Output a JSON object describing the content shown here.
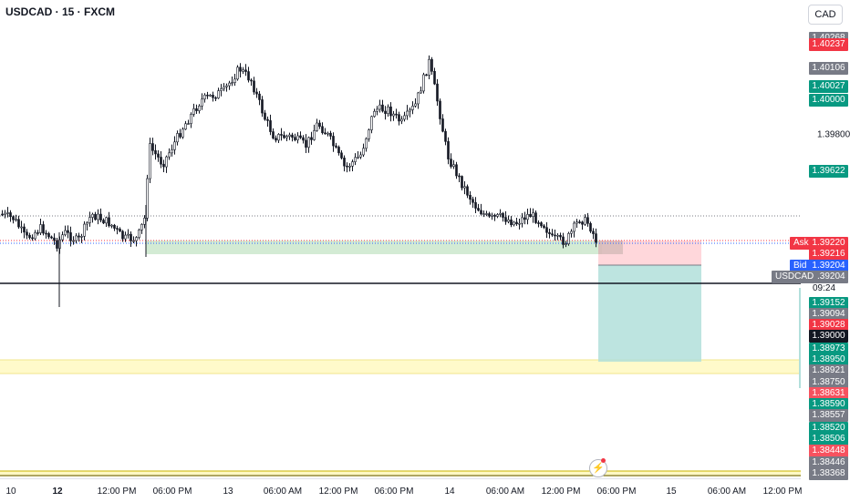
{
  "header": {
    "symbol": "USDCAD · 15 · FXCM"
  },
  "currency": "CAD",
  "price_axis": {
    "ticks": [
      "1.39800"
    ],
    "labels": [
      {
        "text": "1.40268",
        "price": 1.40268,
        "color": "#787b86"
      },
      {
        "text": "1.40237",
        "price": 1.40237,
        "color": "#f23645"
      },
      {
        "text": "1.40106",
        "price": 1.40122,
        "color": "#787b86"
      },
      {
        "text": "1.40027",
        "price": 1.40036,
        "color": "#089981"
      },
      {
        "text": "1.40000",
        "price": 1.39966,
        "color": "#089981"
      },
      {
        "text": "1.39622",
        "price": 1.39622,
        "color": "#089981"
      },
      {
        "text": "1.39220",
        "price": 1.39271,
        "color": "#f23645"
      },
      {
        "text": "1.39216",
        "price": 1.39216,
        "color": "#f23645"
      },
      {
        "text": "1.39204",
        "price": 1.39161,
        "color": "#2962ff"
      },
      {
        "text": "1.39204",
        "price": 1.39107,
        "color": "#787b86"
      },
      {
        "text": "1.39152",
        "price": 1.3898,
        "color": "#089981"
      },
      {
        "text": "1.39094",
        "price": 1.38925,
        "color": "#787b86"
      },
      {
        "text": "1.39028",
        "price": 1.38871,
        "color": "#f23645"
      },
      {
        "text": "1.39000",
        "price": 1.38817,
        "color": "#131722"
      },
      {
        "text": "1.38973",
        "price": 1.38757,
        "color": "#089981"
      },
      {
        "text": "1.38950",
        "price": 1.38703,
        "color": "#089981"
      },
      {
        "text": "1.38921",
        "price": 1.38648,
        "color": "#787b86"
      },
      {
        "text": "1.38750",
        "price": 1.38594,
        "color": "#787b86"
      },
      {
        "text": "1.38631",
        "price": 1.3854,
        "color": "#f7525f"
      },
      {
        "text": "1.38590",
        "price": 1.38485,
        "color": "#089981"
      },
      {
        "text": "1.38557",
        "price": 1.38431,
        "color": "#787b86"
      },
      {
        "text": "1.38520",
        "price": 1.38372,
        "color": "#089981"
      },
      {
        "text": "1.38506",
        "price": 1.38317,
        "color": "#089981"
      },
      {
        "text": "1.38448",
        "price": 1.38258,
        "color": "#f7525f"
      },
      {
        "text": "1.38446",
        "price": 1.38203,
        "color": "#787b86"
      },
      {
        "text": "1.38368",
        "price": 1.38149,
        "color": "#787b86"
      }
    ],
    "ask_tag": "Ask",
    "bid_tag": "Bid",
    "symbol_tag": "USDCAD",
    "countdown": "09:24"
  },
  "time_axis": [
    {
      "label": "10",
      "bold": false
    },
    {
      "label": "12",
      "bold": true
    },
    {
      "label": "12:00 PM",
      "bold": false
    },
    {
      "label": "06:00 PM",
      "bold": false
    },
    {
      "label": "13",
      "bold": false
    },
    {
      "label": "06:00 AM",
      "bold": false
    },
    {
      "label": "12:00 PM",
      "bold": false
    },
    {
      "label": "06:00 PM",
      "bold": false
    },
    {
      "label": "14",
      "bold": false
    },
    {
      "label": "06:00 AM",
      "bold": false
    },
    {
      "label": "12:00 PM",
      "bold": false
    },
    {
      "label": "06:00 PM",
      "bold": false
    },
    {
      "label": "15",
      "bold": false
    },
    {
      "label": "06:00 AM",
      "bold": false
    },
    {
      "label": "12:00 PM",
      "bold": false
    }
  ],
  "colors": {
    "up": "#ffffff",
    "down": "#131722",
    "ask": "#f23645",
    "bid": "#2962ff",
    "zone_green": "#c8e6c9",
    "zone_yellow": "#fff9c4",
    "target": "#b2dfdb",
    "stop": "#ffcdd2"
  },
  "icons": {
    "replay": "lightning-icon"
  },
  "chart_data": {
    "type": "candlestick",
    "series_shape": "intraday 15-minute candles",
    "price_range": [
      1.3814,
      1.403
    ],
    "levels": {
      "ask": 1.3922,
      "bid": 1.39204,
      "black_line": 1.39,
      "green_zone": [
        1.39165,
        1.39205
      ],
      "yellow_zone": [
        1.38585,
        1.3864
      ]
    },
    "position": {
      "entry": 1.39185,
      "stop": 1.392,
      "target": 1.386
    }
  }
}
